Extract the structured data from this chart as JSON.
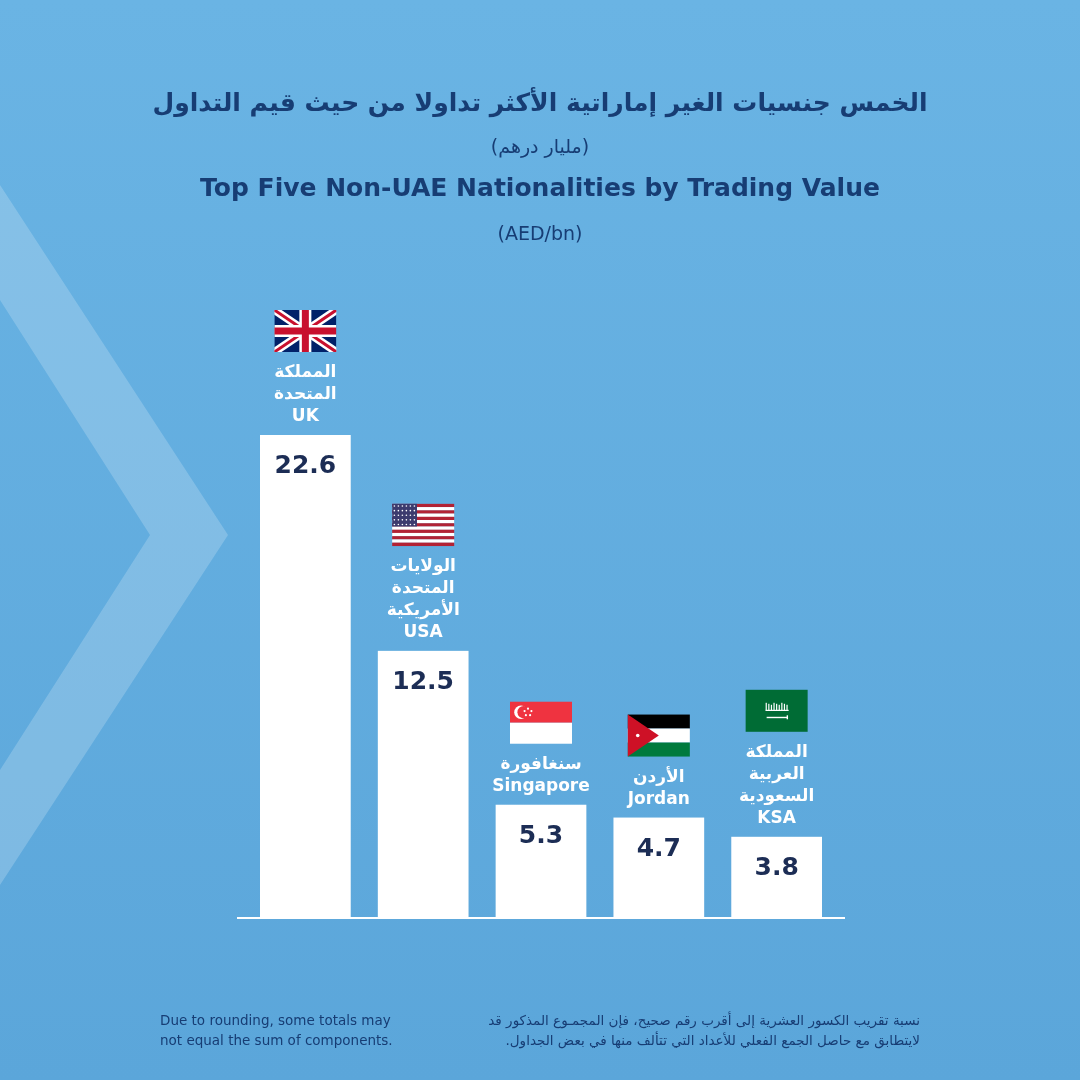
{
  "chart_data": {
    "type": "bar",
    "title": "Top Five Non-UAE Nationalities by Trading Value",
    "subtitle": "(AED/bn)",
    "annotations": [
      "الخمس جنسيات الغير إماراتية الأكثر تداولا من حيث قيم التداول",
      "(مليار درهم)",
      "Due to rounding, some totals may\nnot equal the sum of components.",
      "نسبة تقريب الكسور العشرية إلى أقرب رقم صحيح، فإن المجمـوع المذكور قد\nلايتطابق مع حاصل الجمع الفعلي للأعداد التي تتألف منها في بعض الجداول."
    ],
    "categories": [
      "المملكة\nالمتحدة\nUK",
      "الولايات\nالمتحدة\nالأمريكية\nUSA",
      "سنغافورة\nSingapore",
      "الأردن\nJordan",
      "المملكة\nالعربية\nالسعودية\nKSA"
    ],
    "values": [
      22.6,
      12.5,
      5.3,
      4.7,
      3.8
    ],
    "color": "#ffffff",
    "data_labels": true
  }
}
